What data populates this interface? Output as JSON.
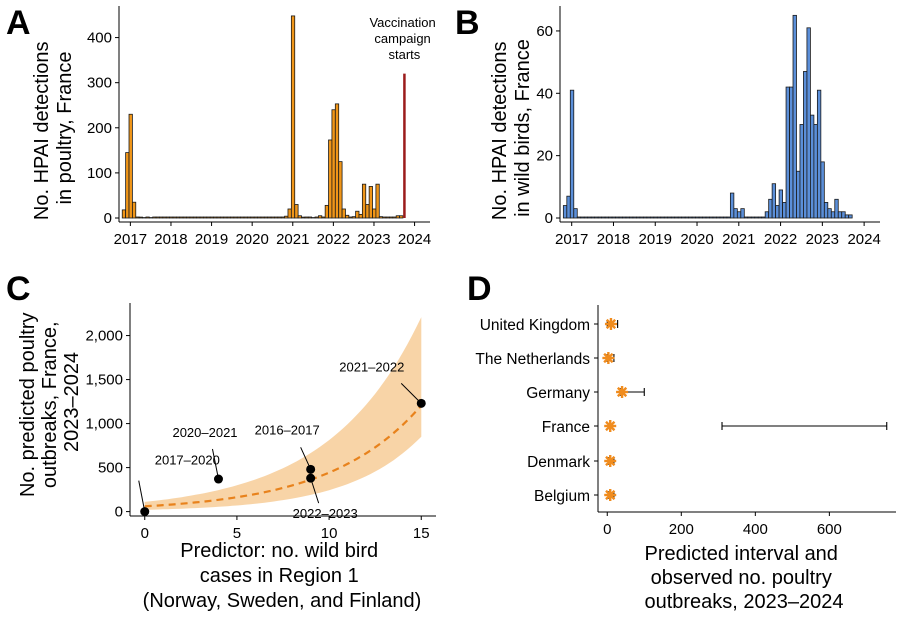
{
  "colors": {
    "poultry_bar": "#f09619",
    "wild_bar": "#5b8fd9",
    "vaccination_line": "#9b1c1c",
    "band": "#f5c68a",
    "curve": "#e8821c",
    "point": "#000000",
    "star": "#f08c1e"
  },
  "chart_data": [
    {
      "panel": "A",
      "type": "bar",
      "ylabel": [
        "No. HPAI detections",
        "in poultry, France"
      ],
      "xlabel": "",
      "xticks": [
        "2017",
        "2018",
        "2019",
        "2020",
        "2021",
        "2022",
        "2023",
        "2024"
      ],
      "yticks": [
        "0",
        "100",
        "200",
        "300",
        "400"
      ],
      "ylim": [
        0,
        470
      ],
      "x_start": 2016.8,
      "x_step": 0.0833,
      "values": [
        18,
        145,
        230,
        35,
        0,
        2,
        1,
        0,
        1,
        0,
        0,
        0,
        0,
        0,
        0,
        0,
        0,
        0,
        0,
        0,
        0,
        0,
        0,
        0,
        0,
        0,
        0,
        0,
        0,
        0,
        0,
        0,
        0,
        0,
        0,
        0,
        0,
        0,
        0,
        0,
        0,
        0,
        0,
        0,
        0,
        0,
        0,
        0,
        4,
        20,
        448,
        30,
        5,
        2,
        0,
        0,
        1,
        0,
        5,
        0,
        28,
        173,
        240,
        253,
        125,
        20,
        6,
        0,
        3,
        15,
        8,
        75,
        30,
        70,
        20,
        75,
        3,
        0,
        0,
        0,
        0,
        5,
        5
      ],
      "annotation": {
        "text": [
          "Vaccination",
          "campaign",
          "starts"
        ],
        "x": 2023.75,
        "y_top": 320
      }
    },
    {
      "panel": "B",
      "type": "bar",
      "ylabel": [
        "No. HPAI detections",
        "in wild birds, France"
      ],
      "xlabel": "",
      "xticks": [
        "2017",
        "2018",
        "2019",
        "2020",
        "2021",
        "2022",
        "2023",
        "2024"
      ],
      "yticks": [
        "0",
        "20",
        "40",
        "60"
      ],
      "ylim": [
        0,
        68
      ],
      "x_start": 2016.8,
      "x_step": 0.0833,
      "values": [
        4,
        7,
        41,
        3,
        0,
        0,
        0,
        0,
        0,
        0,
        0,
        0,
        0,
        0,
        0,
        0,
        0,
        0,
        0,
        0,
        0,
        0,
        0,
        0,
        0,
        0,
        0,
        0,
        0,
        0,
        0,
        0,
        0,
        0,
        0,
        0,
        0,
        0,
        0,
        0,
        0,
        0,
        0,
        0,
        0,
        0,
        0,
        0,
        8,
        3,
        2,
        3,
        0,
        0,
        0,
        0,
        0,
        0,
        2,
        6,
        11,
        4,
        9,
        5,
        42,
        42,
        65,
        15,
        30,
        47,
        61,
        33,
        30,
        41,
        18,
        5,
        3,
        2,
        6,
        2,
        2,
        1,
        1
      ]
    },
    {
      "panel": "C",
      "type": "line",
      "xlabel": [
        "Predictor: no. wild bird",
        "cases in Region 1",
        "(Norway, Sweden, and Finland)"
      ],
      "ylabel": [
        "No. predicted poultry",
        "outbreaks, France,",
        "2023–2024"
      ],
      "xticks": [
        "0",
        "5",
        "10",
        "15"
      ],
      "xtick_values": [
        0,
        5,
        10,
        15
      ],
      "yticks": [
        "0",
        "500",
        "1,000",
        "1,500",
        "2,000"
      ],
      "ytick_values": [
        0,
        500,
        1000,
        1500,
        2000
      ],
      "xlim": [
        -0.8,
        15.8
      ],
      "ylim": [
        -50,
        2370
      ],
      "curve": {
        "a": 60,
        "b": 0.2
      },
      "band": {
        "lower_a": 20,
        "lower_b": 0.25,
        "upper_a": 110,
        "upper_b": 0.2
      },
      "points": [
        {
          "label": "2017–2020",
          "x": 0,
          "y": 0
        },
        {
          "label": "2020–2021",
          "x": 4,
          "y": 370
        },
        {
          "label": "2016–2017",
          "x": 9,
          "y": 480
        },
        {
          "label": "2022–2023",
          "x": 9,
          "y": 380
        },
        {
          "label": "2021–2022",
          "x": 15,
          "y": 1230
        }
      ]
    },
    {
      "panel": "D",
      "type": "scatter",
      "xlabel": [
        "Predicted interval and",
        "observed no. poultry",
        "outbreaks, 2023–2024"
      ],
      "ylabel": "",
      "xticks": [
        "0",
        "200",
        "400",
        "600"
      ],
      "xtick_values": [
        0,
        200,
        400,
        600
      ],
      "xlim": [
        -25,
        780
      ],
      "countries": [
        {
          "name": "United Kingdom",
          "observed": 10,
          "lo": 0,
          "hi": 28
        },
        {
          "name": "The Netherlands",
          "observed": 3,
          "lo": 0,
          "hi": 18
        },
        {
          "name": "Germany",
          "observed": 40,
          "lo": 35,
          "hi": 100
        },
        {
          "name": "France",
          "observed": 8,
          "lo": 310,
          "hi": 755
        },
        {
          "name": "Denmark",
          "observed": 8,
          "lo": 5,
          "hi": 18
        },
        {
          "name": "Belgium",
          "observed": 8,
          "lo": 5,
          "hi": 18
        }
      ]
    }
  ]
}
